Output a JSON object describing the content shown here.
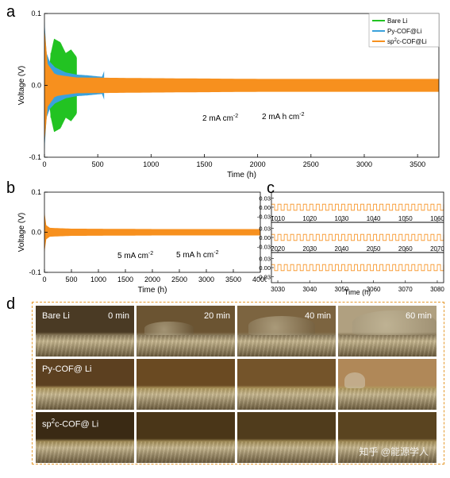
{
  "panel_letters": {
    "a": "a",
    "b": "b",
    "c": "c",
    "d": "d"
  },
  "chart_data": [
    {
      "id": "a",
      "type": "line",
      "ylabel": "Voltage (V)",
      "xlabel": "Time (h)",
      "xlim": [
        0,
        3700
      ],
      "ylim": [
        -0.1,
        0.1
      ],
      "xticks": [
        0,
        500,
        1000,
        1500,
        2000,
        2500,
        3000,
        3500
      ],
      "yticks": [
        -0.1,
        0.0,
        0.1
      ],
      "ytick_labels": [
        "-0.1",
        "0.0",
        "0.1"
      ],
      "legend": {
        "placement": "top-right"
      },
      "series": [
        {
          "name": "Bare Li",
          "color": "#22c322",
          "x_end": 300,
          "envelope": [
            [
              0,
              0.065
            ],
            [
              40,
              0.02
            ],
            [
              60,
              0.045
            ],
            [
              90,
              0.065
            ],
            [
              150,
              0.06
            ],
            [
              200,
              0.045
            ],
            [
              250,
              0.05
            ],
            [
              300,
              0.04
            ]
          ]
        },
        {
          "name": "Py-COF@Li",
          "color": "#3aa1dc",
          "x_end": 560,
          "envelope": [
            [
              0,
              0.09
            ],
            [
              20,
              0.045
            ],
            [
              50,
              0.033
            ],
            [
              100,
              0.025
            ],
            [
              200,
              0.018
            ],
            [
              300,
              0.015
            ],
            [
              400,
              0.014
            ],
            [
              540,
              0.012
            ],
            [
              560,
              0.02
            ]
          ]
        },
        {
          "name": "sp2c-COF@Li",
          "name_parts": [
            "sp",
            "2",
            "c-COF@Li"
          ],
          "color": "#f7901e",
          "x_end": 3700,
          "envelope": [
            [
              0,
              0.08
            ],
            [
              30,
              0.03
            ],
            [
              100,
              0.015
            ],
            [
              300,
              0.011
            ],
            [
              1000,
              0.01
            ],
            [
              2000,
              0.009
            ],
            [
              3000,
              0.009
            ],
            [
              3700,
              0.009
            ]
          ]
        }
      ],
      "annotations": [
        {
          "base": "2 mA cm",
          "sup": "-2"
        },
        {
          "base": "2 mA h cm",
          "sup": "-2"
        }
      ]
    },
    {
      "id": "b",
      "type": "line",
      "ylabel": "Voltage (V)",
      "xlabel": "Time (h)",
      "xlim": [
        0,
        4000
      ],
      "ylim": [
        -0.1,
        0.1
      ],
      "xticks": [
        0,
        500,
        1000,
        1500,
        2000,
        2500,
        3000,
        3500,
        4000
      ],
      "yticks": [
        -0.1,
        0.0,
        0.1
      ],
      "ytick_labels": [
        "-0.1",
        "0.0",
        "0.1"
      ],
      "series": [
        {
          "color": "#f7901e",
          "x_end": 4000,
          "envelope": [
            [
              0,
              0.05
            ],
            [
              30,
              0.018
            ],
            [
              100,
              0.011
            ],
            [
              500,
              0.009
            ],
            [
              2000,
              0.008
            ],
            [
              4000,
              0.008
            ]
          ]
        }
      ],
      "annotations": [
        {
          "base": "5 mA cm",
          "sup": "-2"
        },
        {
          "base": "5 mA h cm",
          "sup": "-2"
        }
      ]
    },
    {
      "id": "c",
      "type": "line",
      "xlabel": "Time (h)",
      "ylim": [
        -0.05,
        0.05
      ],
      "yticks": [
        -0.03,
        0.0,
        0.03
      ],
      "ytick_labels": [
        "-0.03",
        "0.00",
        "0.03"
      ],
      "color": "#f7901e",
      "amplitude": 0.01,
      "cycle_h": 2,
      "subplots": [
        {
          "xlim": [
            1008,
            1062
          ],
          "xticks": [
            1010,
            1020,
            1030,
            1040,
            1050,
            1060
          ],
          "xtick_labels": [
            "1010",
            "1020",
            "1030",
            "1040",
            "1050",
            "1060"
          ]
        },
        {
          "xlim": [
            2018,
            2072
          ],
          "xticks": [
            2020,
            2030,
            2040,
            2050,
            2060,
            2070
          ],
          "xtick_labels": [
            "2020",
            "2030",
            "2040",
            "2050",
            "2060",
            "2070"
          ]
        },
        {
          "xlim": [
            3028,
            3082
          ],
          "xticks": [
            3030,
            3040,
            3050,
            3060,
            3070,
            3080
          ],
          "xtick_labels": [
            "3030",
            "3040",
            "3050",
            "3060",
            "3070",
            "3080"
          ]
        }
      ]
    }
  ],
  "panel_d": {
    "rows": [
      {
        "label": "Bare Li",
        "label_sup": ""
      },
      {
        "label": "Py-COF@ Li",
        "label_sup": ""
      },
      {
        "label": "sp",
        "label_sup": "2",
        "label_rest": "c-COF@ Li"
      }
    ],
    "times": [
      "0 min",
      "20 min",
      "40 min",
      "60 min"
    ],
    "watermark": "知乎 @能源学人"
  }
}
